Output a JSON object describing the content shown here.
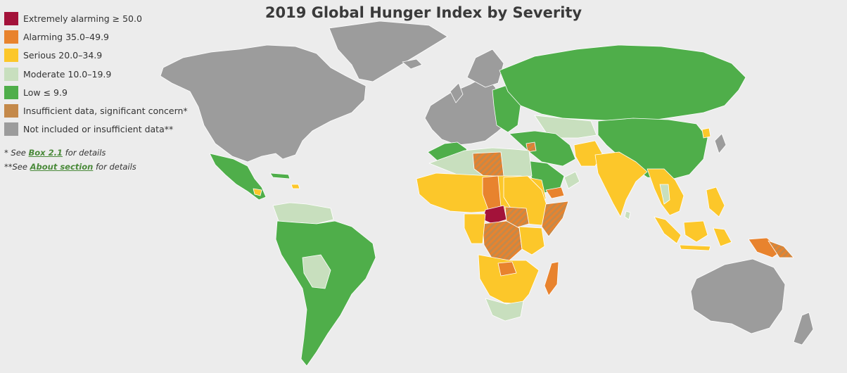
{
  "title": "2019 Global Hunger Index by Severity",
  "legend": [
    {
      "label": "Extremely alarming ≥ 50.0",
      "color": "#a3123a"
    },
    {
      "label": "Alarming 35.0–49.9",
      "color": "#e8832e"
    },
    {
      "label": "Serious 20.0–34.9",
      "color": "#fcc72a"
    },
    {
      "label": "Moderate 10.0–19.9",
      "color": "#c8dfbe"
    },
    {
      "label": "Low ≤ 9.9",
      "color": "#4fae4a"
    },
    {
      "label": "Insufficient data, significant concern*",
      "color": "#c4894a"
    },
    {
      "label": "Not included or insufficient data**",
      "color": "#9c9c9c"
    }
  ],
  "notes": {
    "note1_prefix": "* See ",
    "note1_link": "Box 2.1",
    "note1_suffix": " for details",
    "note2_prefix": "**See ",
    "note2_link": "About section",
    "note2_suffix": " for details"
  },
  "colors": {
    "background": "#ececec",
    "border": "#ffffff",
    "extreme": "#a3123a",
    "alarming": "#e8832e",
    "serious": "#fcc72a",
    "moderate": "#c8dfbe",
    "low": "#4fae4a",
    "concern": "#c4894a",
    "none": "#9c9c9c"
  }
}
